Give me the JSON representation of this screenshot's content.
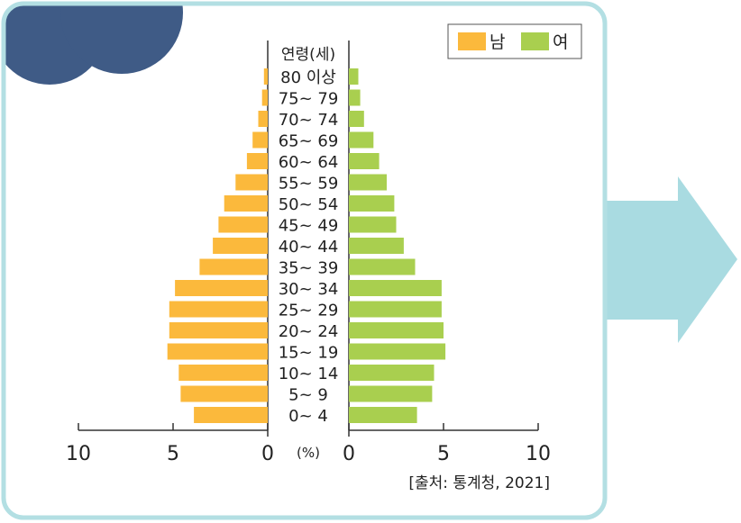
{
  "colors": {
    "frame": "#b3dfe3",
    "arrow": "#a9dbe1",
    "blob": "#3f5b86",
    "male": "#fbb93c",
    "female": "#a9cf4f"
  },
  "legend": {
    "male": "남",
    "female": "여"
  },
  "source": "[출처: 통계청, 2021]",
  "chart_data": {
    "type": "bar",
    "orientation": "horizontal",
    "subtype": "population-pyramid",
    "categories": [
      "0~ 4",
      "5~ 9",
      "10~ 14",
      "15~ 19",
      "20~ 24",
      "25~ 29",
      "30~ 34",
      "35~ 39",
      "40~ 44",
      "45~ 49",
      "50~ 54",
      "55~ 59",
      "60~ 64",
      "65~ 69",
      "70~ 74",
      "75~ 79",
      "80 이상"
    ],
    "categories_title": "연령(세)",
    "series": [
      {
        "name": "남",
        "values": [
          3.9,
          4.6,
          4.7,
          5.3,
          5.2,
          5.2,
          4.9,
          3.6,
          2.9,
          2.6,
          2.3,
          1.7,
          1.1,
          0.8,
          0.5,
          0.3,
          0.2
        ]
      },
      {
        "name": "여",
        "values": [
          3.6,
          4.4,
          4.5,
          5.1,
          5.0,
          4.9,
          4.9,
          3.5,
          2.9,
          2.5,
          2.4,
          2.0,
          1.6,
          1.3,
          0.8,
          0.6,
          0.5
        ]
      }
    ],
    "xlim": [
      0,
      10
    ],
    "ticks": [
      "10",
      "5",
      "0",
      "0",
      "5",
      "10"
    ],
    "unit": "(%)",
    "legend_position": "top-right"
  }
}
